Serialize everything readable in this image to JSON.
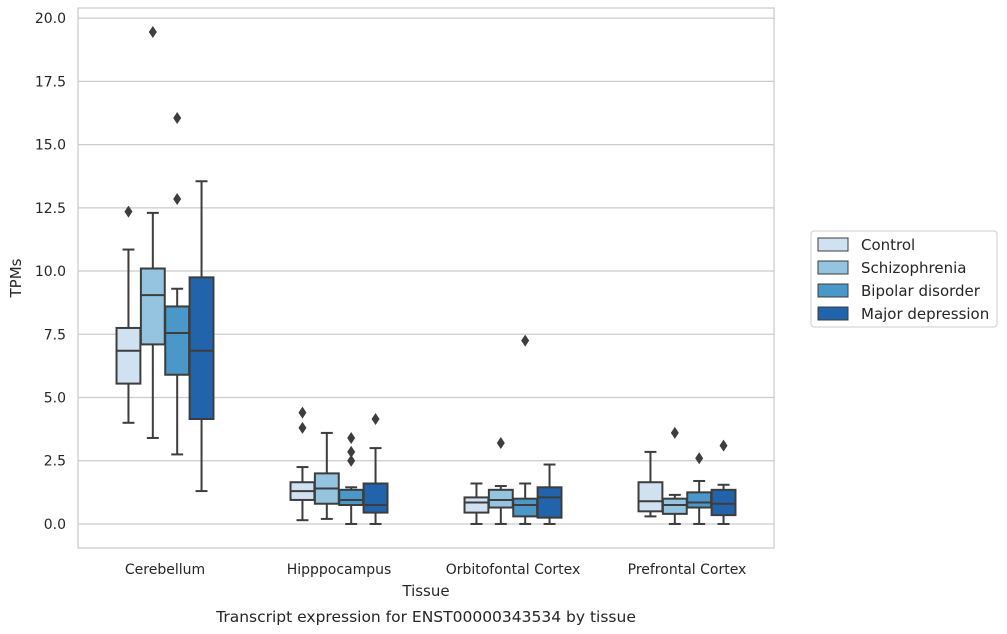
{
  "chart_data": {
    "type": "box",
    "caption": "Transcript expression for ENST00000343534 by tissue",
    "xlabel": "Tissue",
    "ylabel": "TPMs",
    "ylim": [
      -0.95,
      20.4
    ],
    "yticks": [
      "0.0",
      "2.5",
      "5.0",
      "7.5",
      "10.0",
      "12.5",
      "15.0",
      "17.5",
      "20.0"
    ],
    "grid": "horizontal",
    "legend_position": "right",
    "categories": [
      "Cerebellum",
      "Hipppocampus",
      "Orbitofontal Cortex",
      "Prefrontal Cortex"
    ],
    "series": [
      {
        "name": "Control",
        "color": "#d0e1f2",
        "boxes": [
          {
            "whislo": 4.0,
            "q1": 5.55,
            "med": 6.85,
            "q3": 7.75,
            "whishi": 10.85,
            "fliers": [
              12.35
            ]
          },
          {
            "whislo": 0.15,
            "q1": 0.95,
            "med": 1.3,
            "q3": 1.65,
            "whishi": 2.25,
            "fliers": [
              3.8,
              4.4
            ]
          },
          {
            "whislo": 0.0,
            "q1": 0.45,
            "med": 0.85,
            "q3": 1.05,
            "whishi": 1.6,
            "fliers": []
          },
          {
            "whislo": 0.3,
            "q1": 0.5,
            "med": 0.9,
            "q3": 1.65,
            "whishi": 2.85,
            "fliers": []
          }
        ]
      },
      {
        "name": "Schizophrenia",
        "color": "#94c4df",
        "boxes": [
          {
            "whislo": 3.4,
            "q1": 7.1,
            "med": 9.05,
            "q3": 10.1,
            "whishi": 12.3,
            "fliers": [
              19.45
            ]
          },
          {
            "whislo": 0.2,
            "q1": 0.8,
            "med": 1.4,
            "q3": 2.0,
            "whishi": 3.6,
            "fliers": []
          },
          {
            "whislo": 0.0,
            "q1": 0.65,
            "med": 0.95,
            "q3": 1.35,
            "whishi": 1.5,
            "fliers": [
              3.2
            ]
          },
          {
            "whislo": 0.0,
            "q1": 0.4,
            "med": 0.75,
            "q3": 1.0,
            "whishi": 1.15,
            "fliers": [
              3.6
            ]
          }
        ]
      },
      {
        "name": "Bipolar disorder",
        "color": "#4a98c9",
        "boxes": [
          {
            "whislo": 2.75,
            "q1": 5.9,
            "med": 7.55,
            "q3": 8.6,
            "whishi": 9.3,
            "fliers": [
              12.85,
              16.05
            ]
          },
          {
            "whislo": 0.0,
            "q1": 0.75,
            "med": 0.95,
            "q3": 1.35,
            "whishi": 1.45,
            "fliers": [
              2.5,
              2.85,
              3.4
            ]
          },
          {
            "whislo": 0.0,
            "q1": 0.3,
            "med": 0.75,
            "q3": 1.0,
            "whishi": 1.6,
            "fliers": [
              7.25
            ]
          },
          {
            "whislo": 0.0,
            "q1": 0.65,
            "med": 0.85,
            "q3": 1.25,
            "whishi": 1.7,
            "fliers": [
              2.6
            ]
          }
        ]
      },
      {
        "name": "Major depression",
        "color": "#2164ab",
        "boxes": [
          {
            "whislo": 1.3,
            "q1": 4.15,
            "med": 6.85,
            "q3": 9.75,
            "whishi": 13.55,
            "fliers": []
          },
          {
            "whislo": 0.0,
            "q1": 0.45,
            "med": 0.75,
            "q3": 1.6,
            "whishi": 3.0,
            "fliers": [
              4.15
            ]
          },
          {
            "whislo": 0.0,
            "q1": 0.25,
            "med": 1.05,
            "q3": 1.45,
            "whishi": 2.35,
            "fliers": []
          },
          {
            "whislo": 0.0,
            "q1": 0.35,
            "med": 0.8,
            "q3": 1.35,
            "whishi": 1.55,
            "fliers": [
              3.1
            ]
          }
        ]
      }
    ]
  }
}
